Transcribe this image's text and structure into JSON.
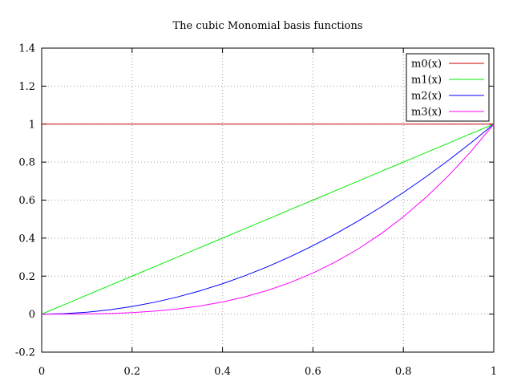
{
  "chart_data": {
    "type": "line",
    "title": "The cubic Monomial basis functions",
    "xlabel": "",
    "ylabel": "",
    "xlim": [
      0,
      1
    ],
    "ylim": [
      -0.2,
      1.4
    ],
    "xticks": [
      0,
      0.2,
      0.4,
      0.6,
      0.8,
      1
    ],
    "xtick_labels": [
      "0",
      "0.2",
      "0.4",
      "0.6",
      "0.8",
      "1"
    ],
    "yticks": [
      -0.2,
      0,
      0.2,
      0.4,
      0.6,
      0.8,
      1,
      1.2,
      1.4
    ],
    "ytick_labels": [
      "-0.2",
      "0",
      "0.2",
      "0.4",
      "0.6",
      "0.8",
      "1",
      "1.2",
      "1.4"
    ],
    "grid": true,
    "legend_position": "top-right",
    "x": [
      0,
      0.05,
      0.1,
      0.15,
      0.2,
      0.25,
      0.3,
      0.35,
      0.4,
      0.45,
      0.5,
      0.55,
      0.6,
      0.65,
      0.7,
      0.75,
      0.8,
      0.85,
      0.9,
      0.95,
      1
    ],
    "series": [
      {
        "name": "m0(x)",
        "color": "#cc0000",
        "values": [
          1,
          1,
          1,
          1,
          1,
          1,
          1,
          1,
          1,
          1,
          1,
          1,
          1,
          1,
          1,
          1,
          1,
          1,
          1,
          1,
          1
        ]
      },
      {
        "name": "m1(x)",
        "color": "#00ee00",
        "values": [
          0,
          0.05,
          0.1,
          0.15,
          0.2,
          0.25,
          0.3,
          0.35,
          0.4,
          0.45,
          0.5,
          0.55,
          0.6,
          0.65,
          0.7,
          0.75,
          0.8,
          0.85,
          0.9,
          0.95,
          1
        ]
      },
      {
        "name": "m2(x)",
        "color": "#0000ff",
        "values": [
          0,
          0.0025,
          0.01,
          0.0225,
          0.04,
          0.0625,
          0.09,
          0.1225,
          0.16,
          0.2025,
          0.25,
          0.3025,
          0.36,
          0.4225,
          0.49,
          0.5625,
          0.64,
          0.7225,
          0.81,
          0.9025,
          1
        ]
      },
      {
        "name": "m3(x)",
        "color": "#ff00ff",
        "values": [
          0,
          0.000125,
          0.001,
          0.003375,
          0.008,
          0.015625,
          0.027,
          0.042875,
          0.064,
          0.091125,
          0.125,
          0.166375,
          0.216,
          0.274625,
          0.343,
          0.421875,
          0.512,
          0.614125,
          0.729,
          0.857375,
          1
        ]
      }
    ]
  }
}
